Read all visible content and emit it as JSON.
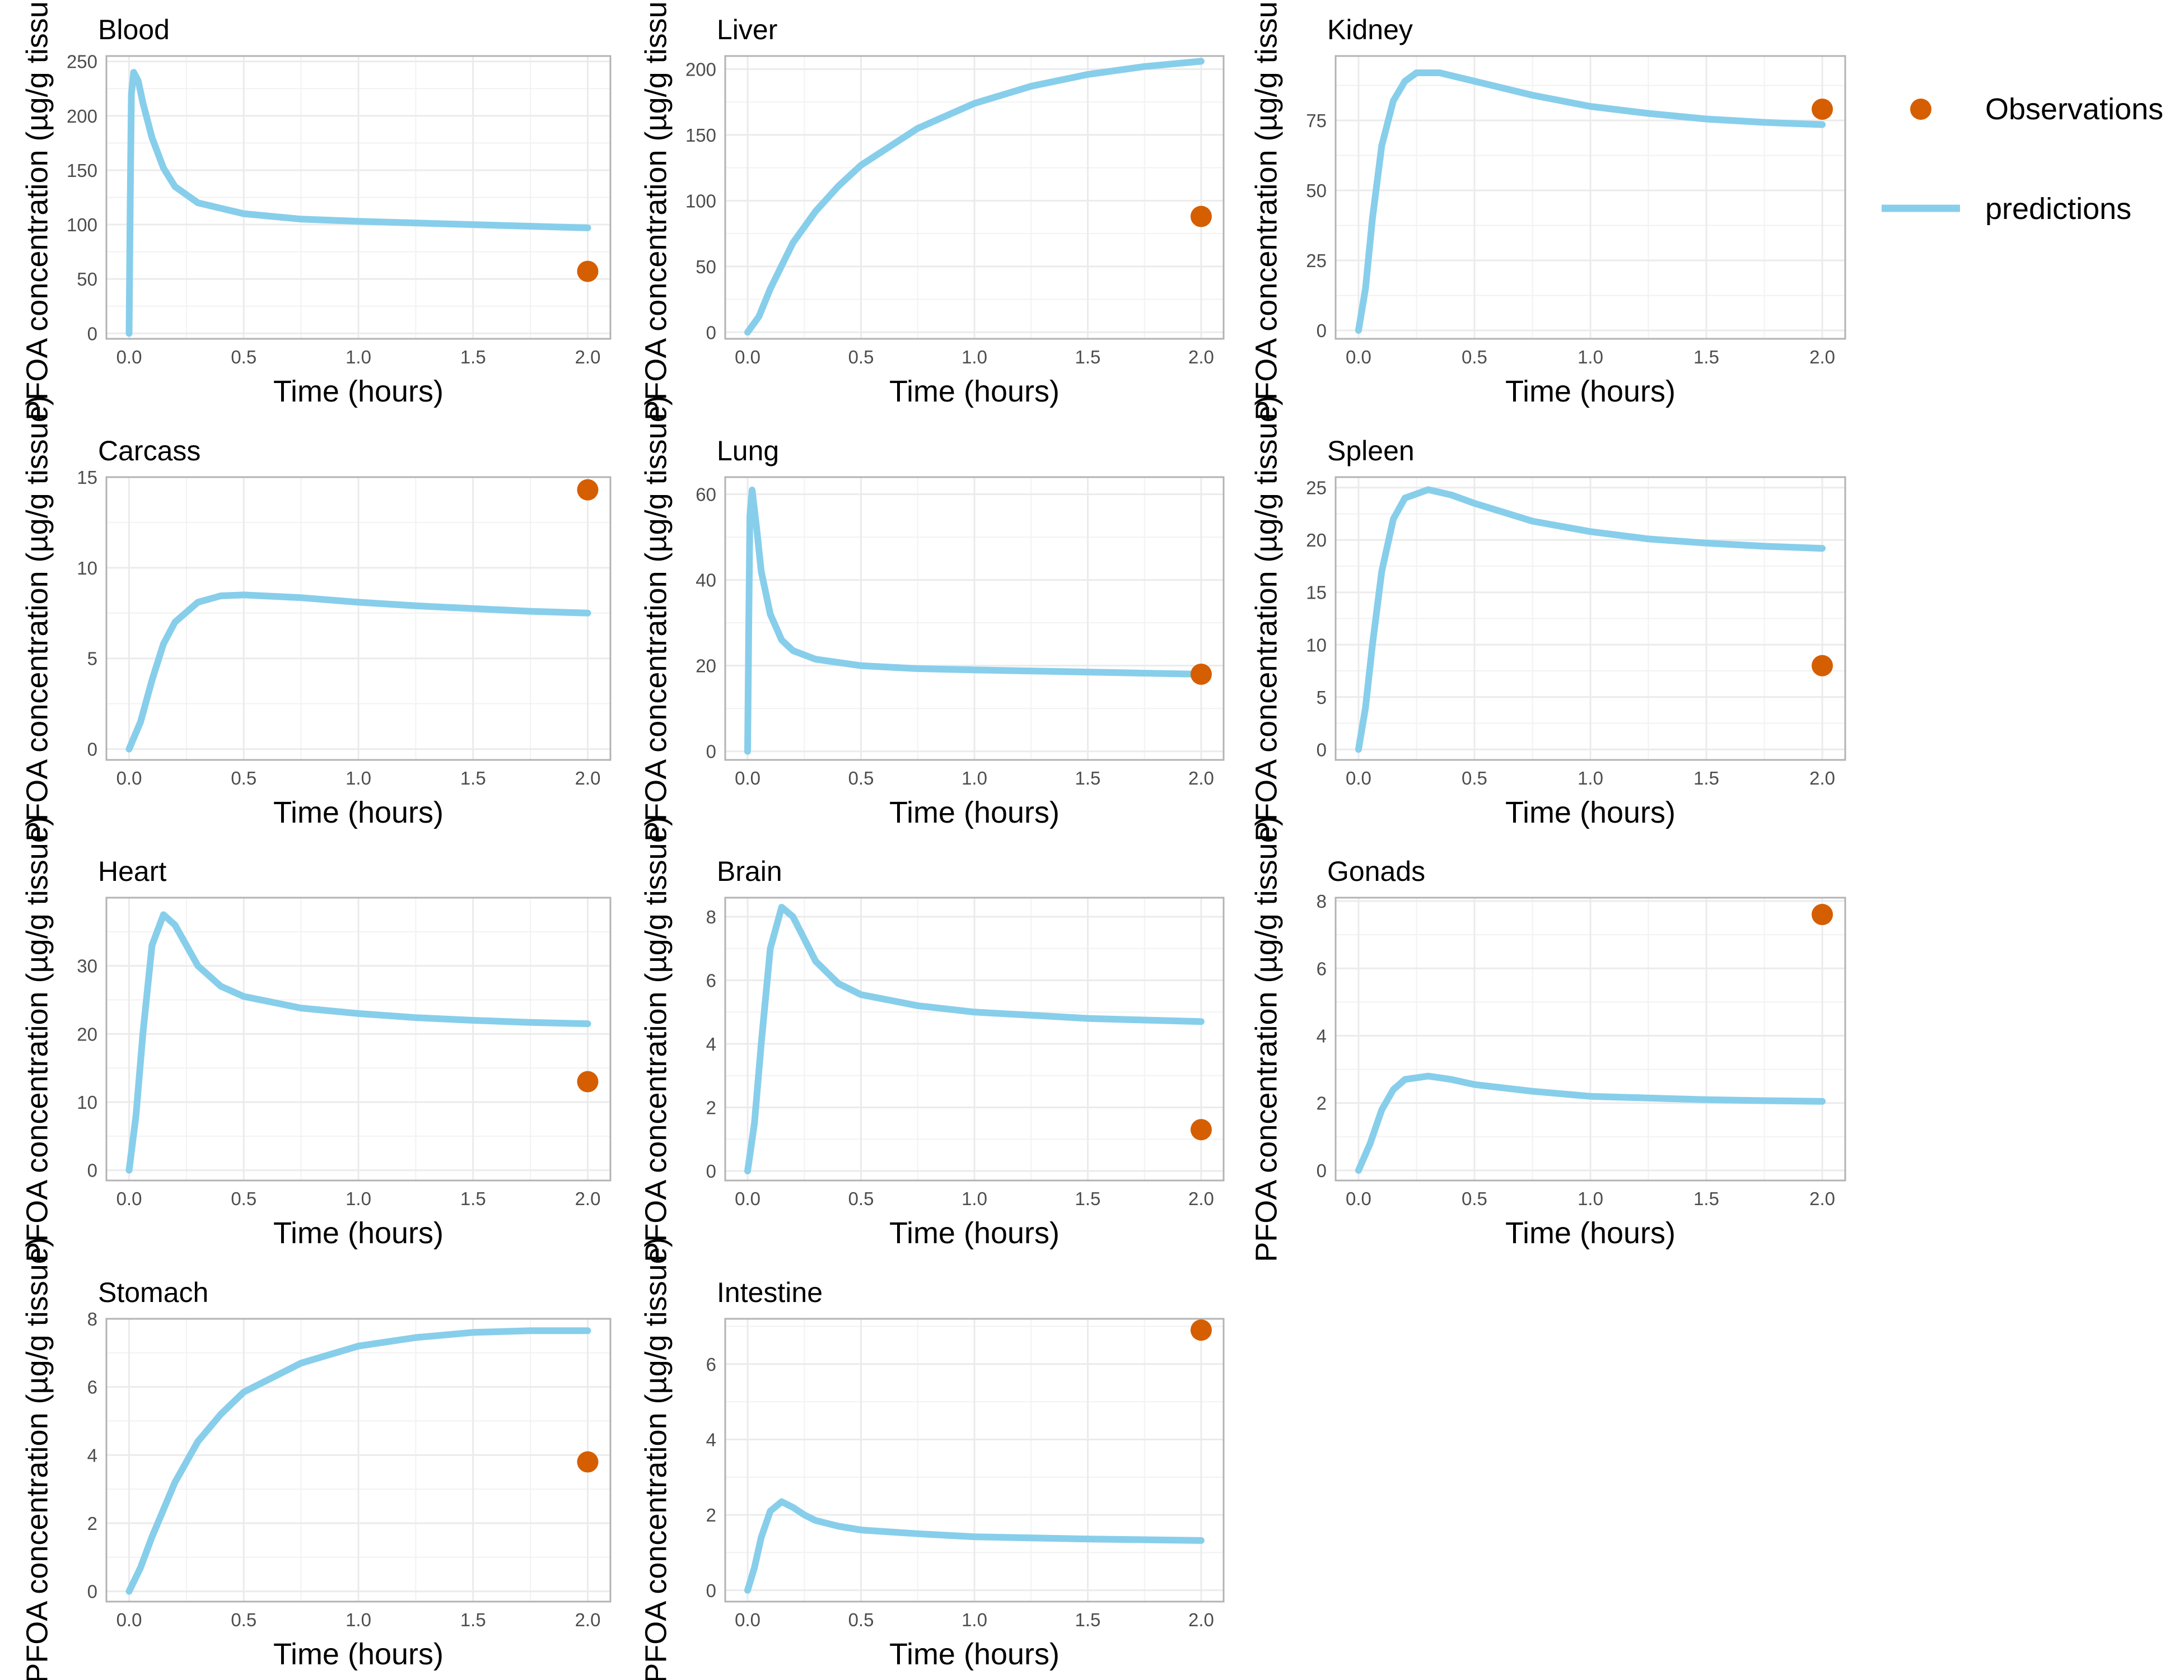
{
  "chart_data": {
    "type": "line",
    "layout": "facet-grid",
    "xlabel": "Time (hours)",
    "ylabel": "PFOA concentration (µg/g tissue)",
    "xlim": [
      0,
      2
    ],
    "x_ticks": [
      0.0,
      0.5,
      1.0,
      1.5,
      2.0
    ],
    "x_tick_labels": [
      "0.0",
      "0.5",
      "1.0",
      "1.5",
      "2.0"
    ],
    "grid": true,
    "legend": {
      "placement": "right",
      "entries": [
        {
          "label": "Observations",
          "kind": "point",
          "color": "#D55E00"
        },
        {
          "label": "predictions",
          "kind": "line",
          "color": "#87CEEB"
        }
      ]
    },
    "colors": {
      "observations": "#D55E00",
      "predictions": "#87CEEB",
      "grid": "#EBEBEB",
      "panel_border": "#B3B3B3",
      "tick_text": "#4D4D4D"
    },
    "panels": [
      {
        "title": "Blood",
        "ylim": [
          -5,
          255
        ],
        "y_ticks": [
          0,
          50,
          100,
          150,
          200,
          250
        ],
        "y_tick_labels": [
          "0",
          "50",
          "100",
          "150",
          "200",
          "250"
        ],
        "predictions": [
          [
            0,
            0
          ],
          [
            0.005,
            120
          ],
          [
            0.01,
            220
          ],
          [
            0.02,
            240
          ],
          [
            0.04,
            232
          ],
          [
            0.06,
            212
          ],
          [
            0.1,
            180
          ],
          [
            0.15,
            152
          ],
          [
            0.2,
            135
          ],
          [
            0.3,
            120
          ],
          [
            0.5,
            110
          ],
          [
            0.75,
            105
          ],
          [
            1.0,
            103
          ],
          [
            1.5,
            100
          ],
          [
            2.0,
            97
          ]
        ],
        "observations": [
          [
            2.0,
            57
          ]
        ]
      },
      {
        "title": "Liver",
        "ylim": [
          -5,
          210
        ],
        "y_ticks": [
          0,
          50,
          100,
          150,
          200
        ],
        "y_tick_labels": [
          "0",
          "50",
          "100",
          "150",
          "200"
        ],
        "predictions": [
          [
            0,
            0
          ],
          [
            0.05,
            12
          ],
          [
            0.1,
            33
          ],
          [
            0.2,
            68
          ],
          [
            0.3,
            92
          ],
          [
            0.4,
            111
          ],
          [
            0.5,
            127
          ],
          [
            0.75,
            155
          ],
          [
            1.0,
            174
          ],
          [
            1.25,
            187
          ],
          [
            1.5,
            196
          ],
          [
            1.75,
            202
          ],
          [
            2.0,
            206
          ]
        ],
        "observations": [
          [
            2.0,
            88
          ]
        ]
      },
      {
        "title": "Kidney",
        "ylim": [
          -3,
          98
        ],
        "y_ticks": [
          0,
          25,
          50,
          75
        ],
        "y_tick_labels": [
          "0",
          "25",
          "50",
          "75"
        ],
        "predictions": [
          [
            0,
            0
          ],
          [
            0.03,
            15
          ],
          [
            0.06,
            40
          ],
          [
            0.1,
            66
          ],
          [
            0.15,
            82
          ],
          [
            0.2,
            89
          ],
          [
            0.25,
            92
          ],
          [
            0.35,
            92
          ],
          [
            0.5,
            89
          ],
          [
            0.75,
            84
          ],
          [
            1.0,
            80
          ],
          [
            1.25,
            77.5
          ],
          [
            1.5,
            75.5
          ],
          [
            1.75,
            74.3
          ],
          [
            2.0,
            73.5
          ]
        ],
        "observations": [
          [
            2.0,
            79
          ]
        ]
      },
      {
        "title": "Carcass",
        "ylim": [
          -0.6,
          15
        ],
        "y_ticks": [
          0,
          5,
          10,
          15
        ],
        "y_tick_labels": [
          "0",
          "5",
          "10",
          "15"
        ],
        "predictions": [
          [
            0,
            0
          ],
          [
            0.05,
            1.5
          ],
          [
            0.1,
            3.8
          ],
          [
            0.15,
            5.8
          ],
          [
            0.2,
            7.0
          ],
          [
            0.3,
            8.1
          ],
          [
            0.4,
            8.45
          ],
          [
            0.5,
            8.5
          ],
          [
            0.75,
            8.35
          ],
          [
            1.0,
            8.1
          ],
          [
            1.25,
            7.9
          ],
          [
            1.5,
            7.75
          ],
          [
            1.75,
            7.6
          ],
          [
            2.0,
            7.5
          ]
        ],
        "observations": [
          [
            2.0,
            14.3
          ]
        ]
      },
      {
        "title": "Lung",
        "ylim": [
          -2,
          64
        ],
        "y_ticks": [
          0,
          20,
          40,
          60
        ],
        "y_tick_labels": [
          "0",
          "20",
          "40",
          "60"
        ],
        "predictions": [
          [
            0,
            0
          ],
          [
            0.005,
            30
          ],
          [
            0.01,
            55
          ],
          [
            0.02,
            61
          ],
          [
            0.04,
            52
          ],
          [
            0.06,
            42
          ],
          [
            0.1,
            32
          ],
          [
            0.15,
            26
          ],
          [
            0.2,
            23.5
          ],
          [
            0.3,
            21.5
          ],
          [
            0.5,
            20
          ],
          [
            0.75,
            19.3
          ],
          [
            1.0,
            19
          ],
          [
            1.5,
            18.5
          ],
          [
            2.0,
            18
          ]
        ],
        "observations": [
          [
            2.0,
            18
          ]
        ]
      },
      {
        "title": "Spleen",
        "ylim": [
          -1,
          26
        ],
        "y_ticks": [
          0,
          5,
          10,
          15,
          20,
          25
        ],
        "y_tick_labels": [
          "0",
          "5",
          "10",
          "15",
          "20",
          "25"
        ],
        "predictions": [
          [
            0,
            0
          ],
          [
            0.03,
            4
          ],
          [
            0.06,
            10
          ],
          [
            0.1,
            17
          ],
          [
            0.15,
            22
          ],
          [
            0.2,
            24
          ],
          [
            0.3,
            24.8
          ],
          [
            0.4,
            24.3
          ],
          [
            0.5,
            23.5
          ],
          [
            0.75,
            21.8
          ],
          [
            1.0,
            20.8
          ],
          [
            1.25,
            20.1
          ],
          [
            1.5,
            19.7
          ],
          [
            1.75,
            19.4
          ],
          [
            2.0,
            19.2
          ]
        ],
        "observations": [
          [
            2.0,
            8
          ]
        ]
      },
      {
        "title": "Heart",
        "ylim": [
          -1.5,
          40
        ],
        "y_ticks": [
          0,
          10,
          20,
          30
        ],
        "y_tick_labels": [
          "0",
          "10",
          "20",
          "30"
        ],
        "predictions": [
          [
            0,
            0
          ],
          [
            0.03,
            8
          ],
          [
            0.06,
            20
          ],
          [
            0.1,
            33
          ],
          [
            0.15,
            37.5
          ],
          [
            0.2,
            36
          ],
          [
            0.25,
            33
          ],
          [
            0.3,
            30
          ],
          [
            0.4,
            27
          ],
          [
            0.5,
            25.5
          ],
          [
            0.75,
            23.8
          ],
          [
            1.0,
            23
          ],
          [
            1.25,
            22.4
          ],
          [
            1.5,
            22
          ],
          [
            1.75,
            21.7
          ],
          [
            2.0,
            21.5
          ]
        ],
        "observations": [
          [
            2.0,
            13
          ]
        ]
      },
      {
        "title": "Brain",
        "ylim": [
          -0.3,
          8.6
        ],
        "y_ticks": [
          0,
          2,
          4,
          6,
          8
        ],
        "y_tick_labels": [
          "0",
          "2",
          "4",
          "6",
          "8"
        ],
        "predictions": [
          [
            0,
            0
          ],
          [
            0.03,
            1.5
          ],
          [
            0.06,
            4
          ],
          [
            0.1,
            7
          ],
          [
            0.15,
            8.3
          ],
          [
            0.2,
            8
          ],
          [
            0.25,
            7.3
          ],
          [
            0.3,
            6.6
          ],
          [
            0.4,
            5.9
          ],
          [
            0.5,
            5.55
          ],
          [
            0.75,
            5.2
          ],
          [
            1.0,
            5.0
          ],
          [
            1.25,
            4.9
          ],
          [
            1.5,
            4.8
          ],
          [
            1.75,
            4.75
          ],
          [
            2.0,
            4.7
          ]
        ],
        "observations": [
          [
            2.0,
            1.3
          ]
        ]
      },
      {
        "title": "Gonads",
        "ylim": [
          -0.3,
          8.1
        ],
        "y_ticks": [
          0,
          2,
          4,
          6,
          8
        ],
        "y_tick_labels": [
          "0",
          "2",
          "4",
          "6",
          "8"
        ],
        "predictions": [
          [
            0,
            0
          ],
          [
            0.05,
            0.8
          ],
          [
            0.1,
            1.8
          ],
          [
            0.15,
            2.4
          ],
          [
            0.2,
            2.7
          ],
          [
            0.3,
            2.8
          ],
          [
            0.4,
            2.7
          ],
          [
            0.5,
            2.55
          ],
          [
            0.75,
            2.35
          ],
          [
            1.0,
            2.2
          ],
          [
            1.25,
            2.15
          ],
          [
            1.5,
            2.1
          ],
          [
            1.75,
            2.07
          ],
          [
            2.0,
            2.05
          ]
        ],
        "observations": [
          [
            2.0,
            7.6
          ]
        ]
      },
      {
        "title": "Stomach",
        "ylim": [
          -0.3,
          8.0
        ],
        "y_ticks": [
          0,
          2,
          4,
          6,
          8
        ],
        "y_tick_labels": [
          "0",
          "2",
          "4",
          "6",
          "8"
        ],
        "predictions": [
          [
            0,
            0
          ],
          [
            0.05,
            0.7
          ],
          [
            0.1,
            1.6
          ],
          [
            0.2,
            3.2
          ],
          [
            0.3,
            4.4
          ],
          [
            0.4,
            5.2
          ],
          [
            0.5,
            5.85
          ],
          [
            0.75,
            6.7
          ],
          [
            1.0,
            7.2
          ],
          [
            1.25,
            7.45
          ],
          [
            1.5,
            7.6
          ],
          [
            1.75,
            7.65
          ],
          [
            2.0,
            7.65
          ]
        ],
        "observations": [
          [
            2.0,
            3.8
          ]
        ]
      },
      {
        "title": "Intestine",
        "ylim": [
          -0.3,
          7.2
        ],
        "y_ticks": [
          0,
          2,
          4,
          6
        ],
        "y_tick_labels": [
          "0",
          "2",
          "4",
          "6"
        ],
        "predictions": [
          [
            0,
            0
          ],
          [
            0.03,
            0.6
          ],
          [
            0.06,
            1.4
          ],
          [
            0.1,
            2.1
          ],
          [
            0.15,
            2.35
          ],
          [
            0.2,
            2.2
          ],
          [
            0.25,
            2.0
          ],
          [
            0.3,
            1.85
          ],
          [
            0.4,
            1.7
          ],
          [
            0.5,
            1.6
          ],
          [
            0.75,
            1.5
          ],
          [
            1.0,
            1.42
          ],
          [
            1.5,
            1.36
          ],
          [
            2.0,
            1.32
          ]
        ],
        "observations": [
          [
            2.0,
            6.9
          ]
        ]
      }
    ]
  }
}
